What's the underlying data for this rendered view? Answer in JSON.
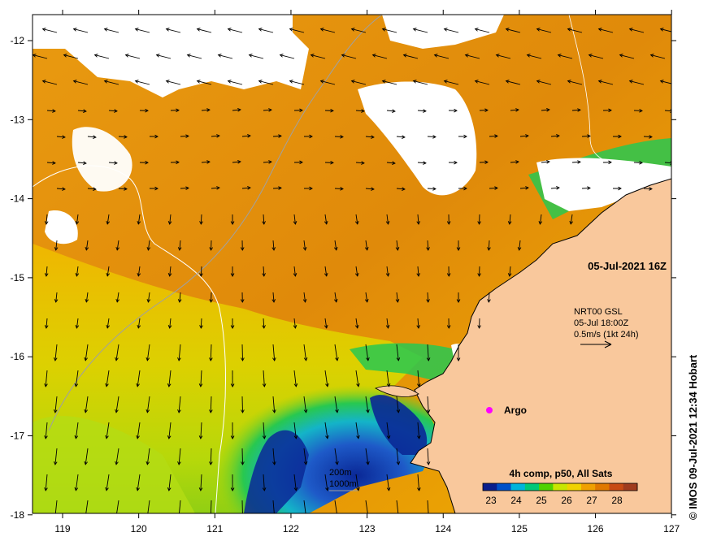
{
  "map": {
    "timestamp": "05-Jul-2021 16Z",
    "current_info": {
      "line1": "NRT00 GSL",
      "line2": "05-Jul 18:00Z",
      "line3": "0.5m/s (1kt 24h)"
    },
    "argo_label": "Argo",
    "colorbar": {
      "title": "4h comp, p50, All Sats",
      "ticks": [
        "23",
        "24",
        "25",
        "26",
        "27",
        "28"
      ],
      "colors": [
        "#0a1e8c",
        "#0050c8",
        "#00b4dc",
        "#00c878",
        "#50d200",
        "#c8e600",
        "#f0d200",
        "#f0a000",
        "#e07800",
        "#c84b14",
        "#a03c1e"
      ]
    },
    "legend": {
      "isobath_200": "200m",
      "isobath_1000": "1000m"
    },
    "x_ticks": [
      "119",
      "120",
      "121",
      "122",
      "123",
      "124",
      "125",
      "126",
      "127"
    ],
    "y_ticks": [
      "-12",
      "-13",
      "-14",
      "-15",
      "-16",
      "-17",
      "-18"
    ],
    "credit": "© IMOS 09-Jul-2021 12:34 Hobart",
    "colors": {
      "land": "#f9c89c",
      "cloud": "#ffffff",
      "warm": "#e8940c",
      "hot": "#d87d0a",
      "mid": "#f0b400",
      "cool_yellow": "#d8dc00",
      "green": "#3cc83c",
      "cyan": "#00c8c8",
      "blue": "#1e64c8",
      "deep_blue": "#0a2896",
      "argo": "#ff00ff"
    }
  }
}
